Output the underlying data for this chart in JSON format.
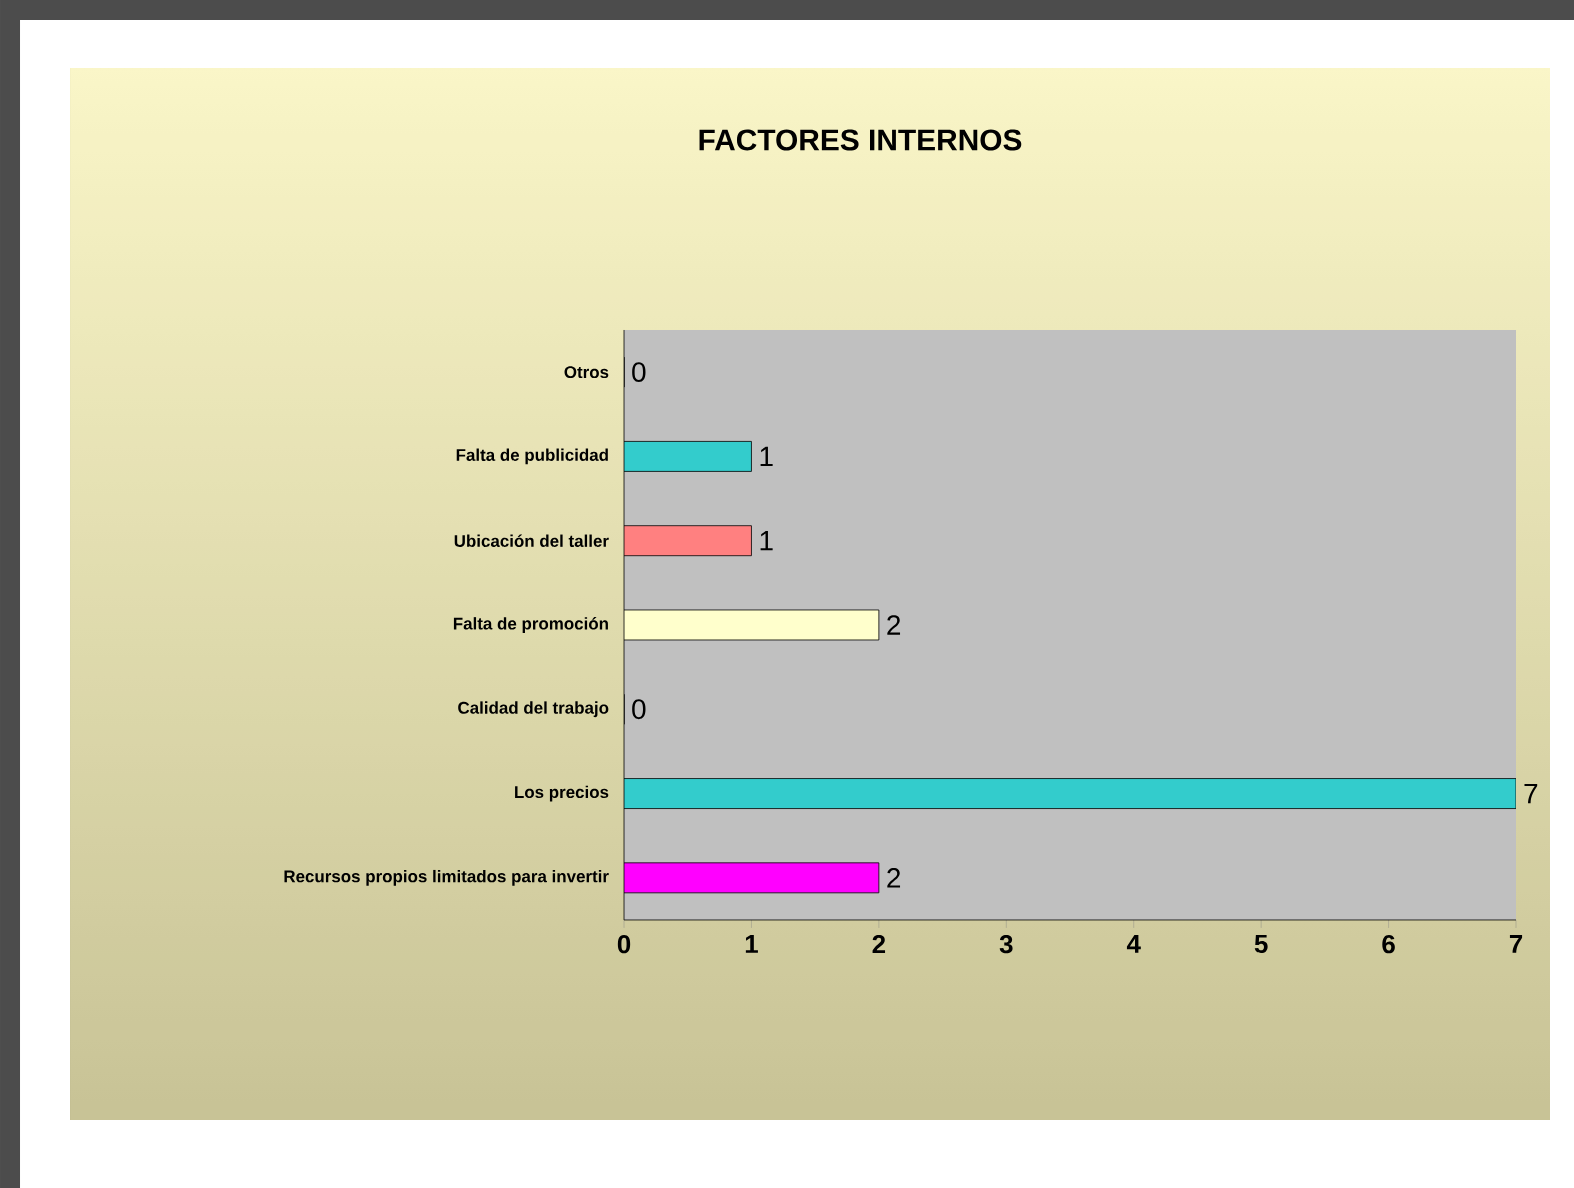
{
  "chart_data": {
    "type": "bar",
    "orientation": "horizontal",
    "title": "FACTORES INTERNOS",
    "categories": [
      "Otros",
      "Falta de publicidad",
      "Ubicación del taller",
      "Falta de promoción",
      "Calidad del trabajo",
      "Los precios",
      "Recursos propios limitados para invertir"
    ],
    "values": [
      0,
      1,
      1,
      2,
      0,
      7,
      2
    ],
    "colors": [
      "#1f4e79",
      "#33cccc",
      "#ff8080",
      "#ffffcc",
      "#1f4e79",
      "#33cccc",
      "#ff00ff"
    ],
    "xlim": [
      0,
      7
    ],
    "xticks": [
      0,
      1,
      2,
      3,
      4,
      5,
      6,
      7
    ],
    "data_labels": true,
    "grid": false
  }
}
